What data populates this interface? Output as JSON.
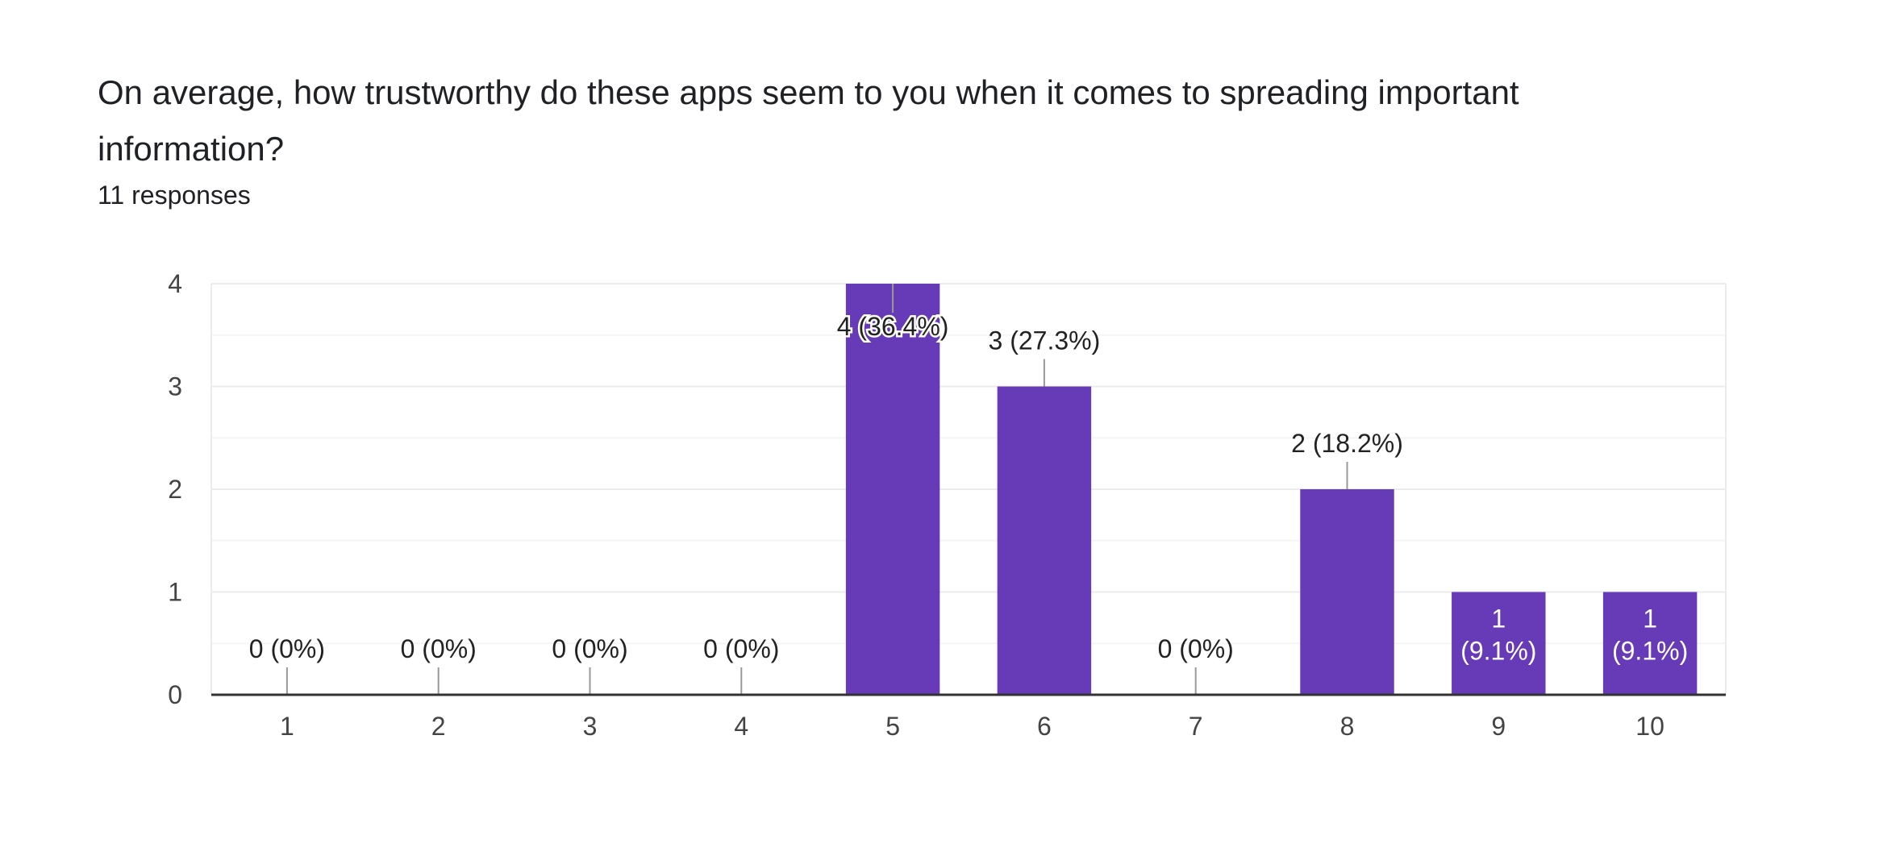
{
  "header": {
    "title": "On average, how trustworthy do these apps seem to you when it comes to spreading important information?",
    "subtitle": "11 responses"
  },
  "colors": {
    "bar": "#673ab7",
    "gridline": "#ebebeb",
    "minor_gridline": "#f5f5f5",
    "axis": "#333333",
    "leader": "#999999",
    "label_dark": "#222222",
    "label_light": "#ffffff"
  },
  "chart_data": {
    "type": "bar",
    "categories": [
      "1",
      "2",
      "3",
      "4",
      "5",
      "6",
      "7",
      "8",
      "9",
      "10"
    ],
    "values": [
      0,
      0,
      0,
      0,
      4,
      3,
      0,
      2,
      1,
      1
    ],
    "data_labels": [
      "0 (0%)",
      "0 (0%)",
      "0 (0%)",
      "0 (0%)",
      "4 (36.4%)",
      "3 (27.3%)",
      "0 (0%)",
      "2 (18.2%)",
      "1\n(9.1%)",
      "1\n(9.1%)"
    ],
    "title": "On average, how trustworthy do these apps seem to you when it comes to spreading important information?",
    "xlabel": "",
    "ylabel": "",
    "ylim": [
      0,
      4
    ],
    "yticks": [
      0,
      1,
      2,
      3,
      4
    ],
    "grid": true,
    "legend": "none"
  }
}
